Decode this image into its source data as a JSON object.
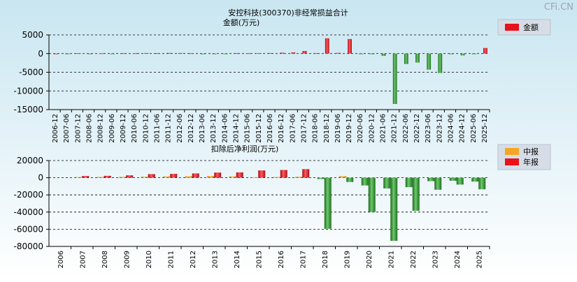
{
  "watermark": "CFi.CN",
  "colors": {
    "background_top": "#c9e6f1",
    "background_bottom": "#ffffff",
    "red": "#e8121a",
    "green": "#2e9a2e",
    "orange": "#f5a623",
    "legend_bg": "#d7dde6",
    "text": "#000000"
  },
  "chart_data": [
    {
      "type": "bar",
      "title": "安控科技(300370)非经常损益合计",
      "subtitle": "金额(万元)",
      "legend": {
        "placement": "top-right",
        "items": [
          {
            "label": "金额",
            "color": "#e8121a"
          }
        ]
      },
      "ylim": [
        -15000,
        5000
      ],
      "yticks": [
        "5000",
        "0",
        "-5000",
        "-10000",
        "-15000"
      ],
      "grid": true,
      "categories": [
        "2006-12",
        "2007-06",
        "2007-12",
        "2008-06",
        "2008-12",
        "2009-06",
        "2009-12",
        "2010-06",
        "2010-12",
        "2011-06",
        "2011-12",
        "2012-06",
        "2012-12",
        "2013-06",
        "2013-12",
        "2014-06",
        "2014-12",
        "2015-06",
        "2015-12",
        "2016-06",
        "2016-12",
        "2017-06",
        "2017-12",
        "2018-06",
        "2018-12",
        "2019-06",
        "2019-12",
        "2020-06",
        "2020-12",
        "2021-06",
        "2021-12",
        "2022-06",
        "2022-12",
        "2023-06",
        "2023-12",
        "2024-06",
        "2024-12",
        "2025-06",
        "2025-12"
      ],
      "series": [
        {
          "name": "金额",
          "values": [
            0,
            -50,
            120,
            -40,
            80,
            -30,
            100,
            90,
            150,
            120,
            180,
            150,
            100,
            -60,
            -80,
            -50,
            120,
            100,
            130,
            150,
            250,
            320,
            700,
            120,
            4100,
            200,
            3900,
            -60,
            -200,
            -600,
            -13500,
            -2800,
            -2400,
            -4300,
            -5200,
            -50,
            -500,
            -30,
            1500
          ]
        }
      ]
    },
    {
      "type": "bar",
      "title": "扣除后净利润(万元)",
      "legend": {
        "placement": "top-right",
        "items": [
          {
            "label": "中报",
            "color": "#f5a623"
          },
          {
            "label": "年报",
            "color": "#e8121a"
          }
        ]
      },
      "ylim": [
        -80000,
        20000
      ],
      "yticks": [
        "20000",
        "0",
        "-20000",
        "-40000",
        "-60000",
        "-80000"
      ],
      "grid": true,
      "categories": [
        "2006",
        "2007",
        "2008",
        "2009",
        "2010",
        "2011",
        "2012",
        "2013",
        "2014",
        "2015",
        "2016",
        "2017",
        "2018",
        "2019",
        "2020",
        "2021",
        "2022",
        "2023",
        "2024",
        "2025"
      ],
      "series": [
        {
          "name": "中报",
          "values": [
            null,
            800,
            900,
            1000,
            1200,
            1500,
            1700,
            2000,
            1500,
            600,
            800,
            1100,
            -1500,
            1800,
            -9000,
            -12500,
            -11000,
            -4000,
            -3500,
            -4500
          ]
        },
        {
          "name": "年报",
          "values": [
            null,
            2000,
            2200,
            2800,
            4200,
            4500,
            5000,
            6000,
            6200,
            8500,
            9000,
            10000,
            -59500,
            -5000,
            -40000,
            -73500,
            -38500,
            -14000,
            -8000,
            -13500
          ]
        }
      ]
    }
  ]
}
